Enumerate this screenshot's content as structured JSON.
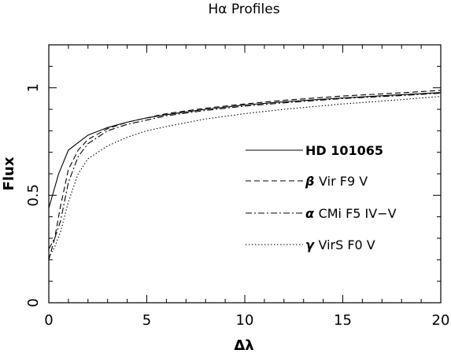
{
  "chart_data": {
    "type": "line",
    "title": "Hα Profiles",
    "xlabel": "Δλ",
    "ylabel": "Flux",
    "xlim": [
      0,
      20
    ],
    "ylim": [
      0,
      1.2
    ],
    "xticks": [
      0,
      5,
      10,
      15,
      20
    ],
    "xtick_labels": [
      "0",
      "5",
      "10",
      "15",
      "20"
    ],
    "yticks": [
      0,
      0.5,
      1
    ],
    "ytick_labels": [
      "0",
      "0.5",
      "1"
    ],
    "grid": false,
    "legend_position": "right",
    "series": [
      {
        "name": "HD 101065",
        "style": "solid",
        "x": [
          0,
          0.5,
          1,
          2,
          3,
          4,
          5,
          6,
          8,
          10,
          12,
          15,
          18,
          20
        ],
        "y": [
          0.44,
          0.6,
          0.71,
          0.78,
          0.815,
          0.84,
          0.86,
          0.875,
          0.9,
          0.92,
          0.935,
          0.953,
          0.968,
          0.978
        ]
      },
      {
        "name": "Vir F9 V",
        "name_prefix": "β",
        "style": "dashed",
        "x": [
          0,
          0.3,
          0.6,
          1,
          1.5,
          2,
          3,
          4,
          5,
          6,
          8,
          10,
          12,
          15,
          18,
          20
        ],
        "y": [
          0.2,
          0.3,
          0.45,
          0.62,
          0.71,
          0.76,
          0.81,
          0.84,
          0.86,
          0.88,
          0.905,
          0.925,
          0.942,
          0.962,
          0.977,
          0.988
        ]
      },
      {
        "name": "CMi F5 IV−V",
        "name_prefix": "α",
        "style": "dashdot",
        "x": [
          0,
          0.3,
          0.6,
          1,
          1.5,
          2,
          3,
          4,
          5,
          6,
          8,
          10,
          12,
          15,
          18,
          20
        ],
        "y": [
          0.25,
          0.3,
          0.38,
          0.56,
          0.68,
          0.74,
          0.8,
          0.83,
          0.85,
          0.87,
          0.895,
          0.915,
          0.93,
          0.95,
          0.964,
          0.975
        ]
      },
      {
        "name": "VirS F0 V",
        "name_prefix": "γ",
        "style": "dotted",
        "x": [
          0,
          0.3,
          0.6,
          1,
          1.5,
          2,
          3,
          4,
          5,
          6,
          8,
          10,
          12,
          15,
          18,
          20
        ],
        "y": [
          0.21,
          0.26,
          0.33,
          0.47,
          0.6,
          0.67,
          0.73,
          0.77,
          0.8,
          0.82,
          0.855,
          0.88,
          0.9,
          0.925,
          0.945,
          0.96
        ]
      }
    ]
  }
}
